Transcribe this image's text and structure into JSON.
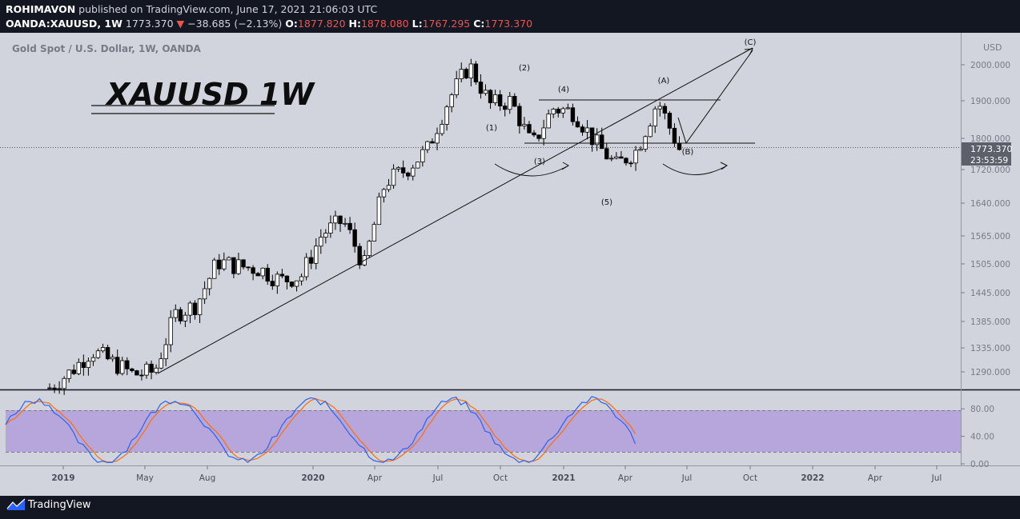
{
  "header": {
    "author": "ROHIMAVON",
    "published_text": "published on TradingView.com, June 17, 2021 21:06:03 UTC",
    "symbol": "OANDA:XAUUSD, 1W",
    "last": "1773.370",
    "change": "−38.685 (−2.13%)",
    "o_label": "O:",
    "o": "1877.820",
    "h_label": "H:",
    "h": "1878.080",
    "l_label": "L:",
    "l": "1767.295",
    "c_label": "C:",
    "c": "1773.370"
  },
  "legend_title": "Gold Spot / U.S. Dollar, 1W, OANDA",
  "overlay_title": "XAUUSD 1W",
  "currency_label": "USD",
  "price_label": "1773.370",
  "countdown_label": "23:53:59",
  "footer_brand": "TradingView",
  "colors": {
    "background": "#d1d4dc",
    "frame": "#131722",
    "candle_up": "#ffffff",
    "candle_down": "#000000",
    "stoch_k": "#2962ff",
    "stoch_d": "#ff6d00",
    "stoch_band": "#b39ddb",
    "price_label_bg": "#5d606b"
  },
  "chart_data": {
    "type": "candlestick",
    "title": "Gold Spot / U.S. Dollar, 1W, OANDA",
    "x_ticks": [
      "2019",
      "May",
      "Aug",
      "2020",
      "Apr",
      "Jul",
      "Oct",
      "2021",
      "Apr",
      "Jul",
      "Oct",
      "2022",
      "Apr",
      "Jul"
    ],
    "y_ticks": [
      1290,
      1335,
      1385,
      1445,
      1505,
      1565,
      1640,
      1720,
      1800,
      1900,
      2000
    ],
    "y_tick_labels": [
      "1290.000",
      "1335.000",
      "1385.000",
      "1445.000",
      "1505.000",
      "1565.000",
      "1640.000",
      "1720.000",
      "1800.000",
      "1900.000",
      "2000.000"
    ],
    "last_price": 1773.37,
    "approx_close_path": [
      [
        "2018-12",
        1260
      ],
      [
        "2019-01",
        1290
      ],
      [
        "2019-02",
        1330
      ],
      [
        "2019-04",
        1285
      ],
      [
        "2019-05",
        1290
      ],
      [
        "2019-06",
        1400
      ],
      [
        "2019-07",
        1420
      ],
      [
        "2019-08",
        1510
      ],
      [
        "2019-09",
        1500
      ],
      [
        "2019-10",
        1495
      ],
      [
        "2019-11",
        1470
      ],
      [
        "2019-12",
        1480
      ],
      [
        "2020-01",
        1570
      ],
      [
        "2020-02",
        1600
      ],
      [
        "2020-03",
        1500
      ],
      [
        "2020-04",
        1690
      ],
      [
        "2020-05",
        1720
      ],
      [
        "2020-06",
        1770
      ],
      [
        "2020-07",
        1900
      ],
      [
        "2020-08",
        2000
      ],
      [
        "2020-09",
        1890
      ],
      [
        "2020-10",
        1900
      ],
      [
        "2020-11",
        1780
      ],
      [
        "2020-12",
        1880
      ],
      [
        "2021-01",
        1870
      ],
      [
        "2021-02",
        1790
      ],
      [
        "2021-03",
        1730
      ],
      [
        "2021-04",
        1770
      ],
      [
        "2021-05",
        1900
      ],
      [
        "2021-06",
        1773
      ]
    ],
    "annotations": [
      "(1)",
      "(2)",
      "(3)",
      "(4)",
      "(5)",
      "(A)",
      "(B)",
      "(C)"
    ],
    "stochastic": {
      "y_ticks": [
        0,
        40,
        80
      ],
      "y_tick_labels": [
        "0.00",
        "40.00",
        "80.00"
      ],
      "band": [
        20,
        80
      ]
    }
  }
}
